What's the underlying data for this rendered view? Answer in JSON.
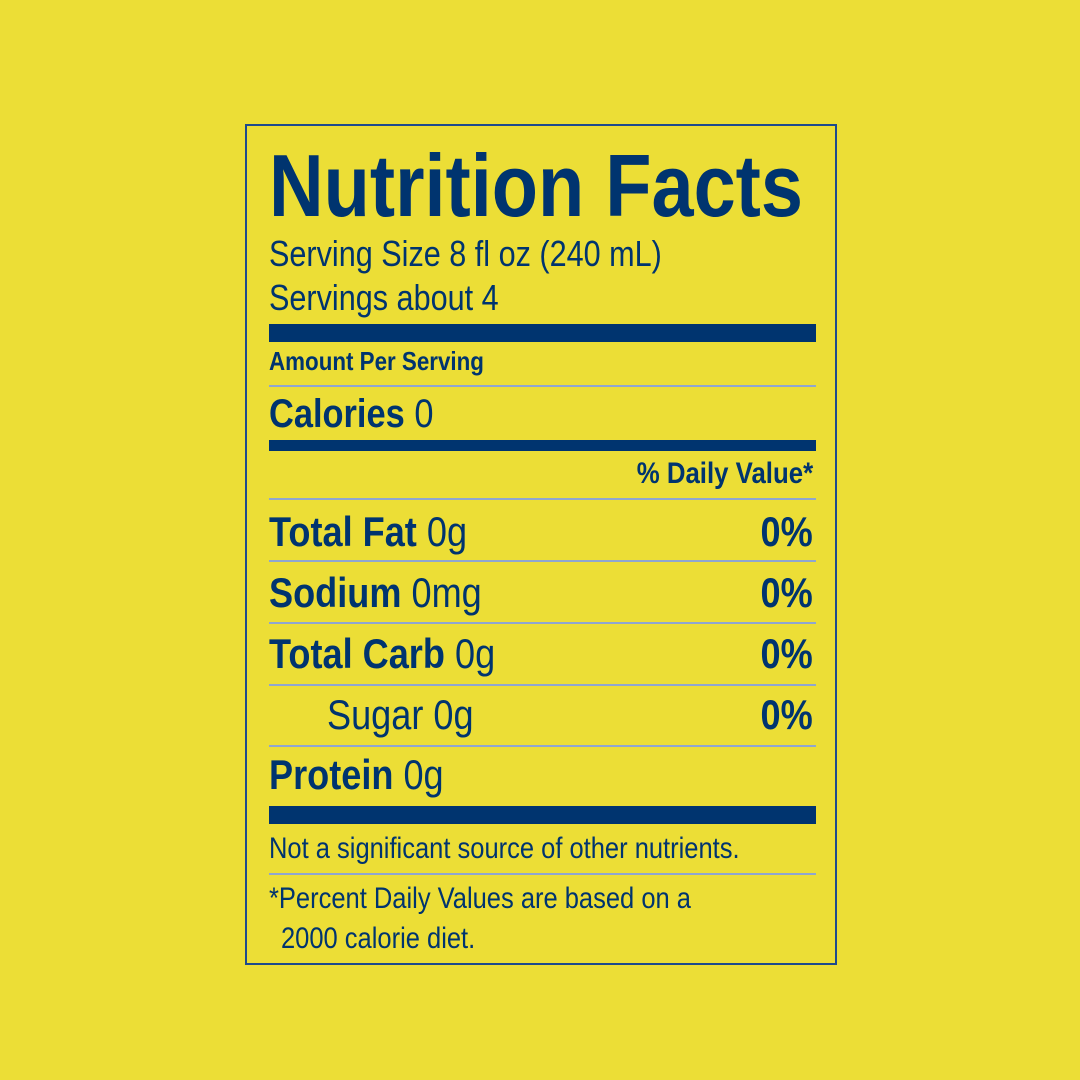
{
  "colors": {
    "background": "#ECDE36",
    "ink": "#00346F"
  },
  "title": "Nutrition Facts",
  "serving_size": "Serving Size 8 fl oz (240 mL)",
  "servings": "Servings about 4",
  "amount_per_serving": "Amount Per Serving",
  "calories": {
    "label": "Calories",
    "value": "0"
  },
  "daily_value_header": "% Daily Value*",
  "nutrients": [
    {
      "label": "Total Fat",
      "amount": "0g",
      "dv": "0%"
    },
    {
      "label": "Sodium",
      "amount": "0mg",
      "dv": "0%"
    },
    {
      "label": "Total Carb",
      "amount": "0g",
      "dv": "0%"
    },
    {
      "label": "Sugar",
      "amount": "0g",
      "dv": "0%"
    },
    {
      "label": "Protein",
      "amount": "0g",
      "dv": ""
    }
  ],
  "note": "Not a significant source of other nutrients.",
  "footnote_line1": "*Percent Daily Values are based on a",
  "footnote_line2": "2000 calorie diet."
}
